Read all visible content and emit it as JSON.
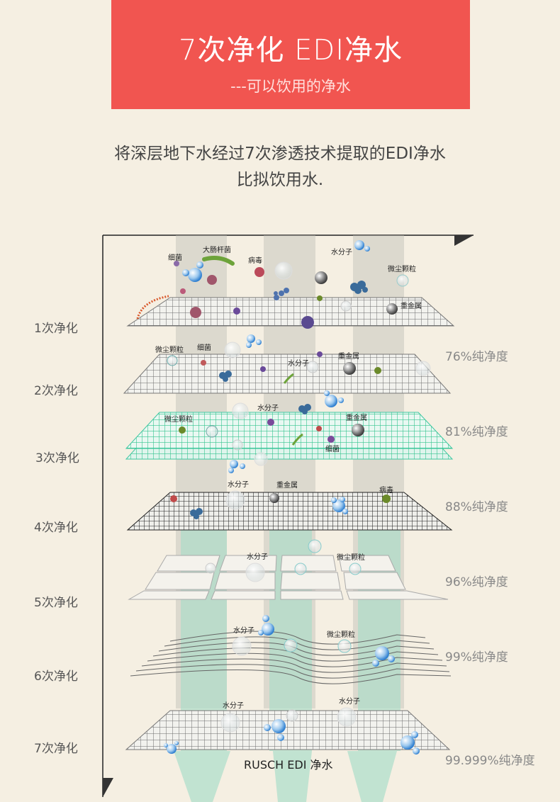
{
  "banner": {
    "title": "7次净化 EDI净水",
    "subtitle": "---可以饮用的净水"
  },
  "intro": {
    "line1": "将深层地下水经过7次渗透技术提取的EDI净水",
    "line2": "比拟饮用水."
  },
  "stages": [
    {
      "label": "1次净化",
      "purity": ""
    },
    {
      "label": "2次净化",
      "purity": "76%纯净度"
    },
    {
      "label": "3次净化",
      "purity": "81%纯净度"
    },
    {
      "label": "4次净化",
      "purity": "88%纯净度"
    },
    {
      "label": "5次净化",
      "purity": "96%纯净度"
    },
    {
      "label": "6次净化",
      "purity": "99%纯净度"
    },
    {
      "label": "7次净化",
      "purity": "99.999%纯净度"
    }
  ],
  "particle_labels": {
    "bacteria": "细菌",
    "e_coli": "大肠杆菌",
    "virus": "病毒",
    "water_molecule": "水分子",
    "dust": "微尘颗粒",
    "heavy_metal": "重金属"
  },
  "brand": "RUSCH  EDI 净水",
  "colors": {
    "banner": "#f15550",
    "background": "#f5efe2",
    "filter_teal": "#3fc7a2",
    "beam": "#b7dccf"
  }
}
